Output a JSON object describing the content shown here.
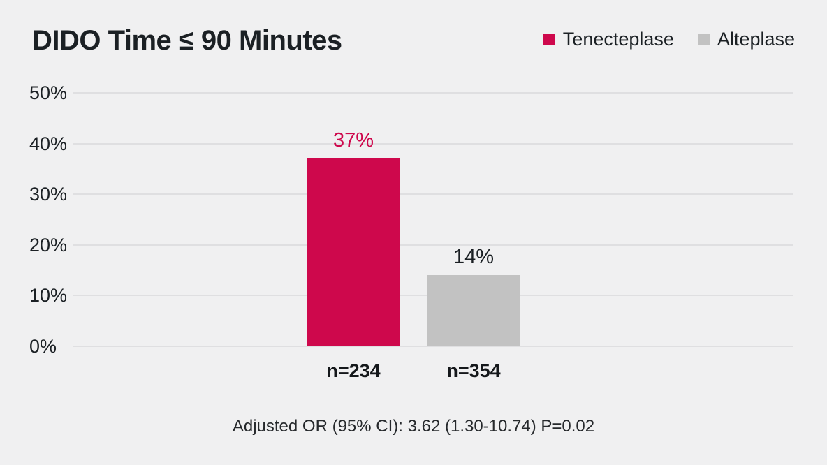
{
  "title": "DIDO Time ≤ 90 Minutes",
  "legend": {
    "items": [
      {
        "label": "Tenecteplase",
        "color": "#ce084c",
        "swatch": "tenecteplase-swatch-icon"
      },
      {
        "label": "Alteplase",
        "color": "#c2c2c2",
        "swatch": "alteplase-swatch-icon"
      }
    ]
  },
  "footnote": "Adjusted OR (95% CI): 3.62 (1.30-10.74) P=0.02",
  "chart_data": {
    "type": "bar",
    "title": "DIDO Time ≤ 90 Minutes",
    "categories": [
      "Tenecteplase",
      "Alteplase"
    ],
    "values": [
      37,
      14
    ],
    "bars": [
      {
        "category": "Tenecteplase",
        "value": 37,
        "value_label": "37%",
        "n_label": "n=234",
        "color": "#ce084c",
        "value_label_color": "#ce084c"
      },
      {
        "category": "Alteplase",
        "value": 14,
        "value_label": "14%",
        "n_label": "n=354",
        "color": "#c2c2c2",
        "value_label_color": "#1b2024"
      }
    ],
    "xlabel": "",
    "ylabel": "",
    "ylim": [
      0,
      50
    ],
    "yticks": [
      {
        "value": 0,
        "label": "0%"
      },
      {
        "value": 10,
        "label": "10%"
      },
      {
        "value": 20,
        "label": "20%"
      },
      {
        "value": 30,
        "label": "30%"
      },
      {
        "value": 40,
        "label": "40%"
      },
      {
        "value": 50,
        "label": "50%"
      }
    ],
    "grid": true,
    "legend_position": "top-right",
    "annotation": "Adjusted OR (95% CI): 3.62 (1.30-10.74) P=0.02"
  },
  "colors": {
    "background": "#f0f0f1",
    "gridline": "#dfdfe1",
    "text": "#1b2024",
    "accent": "#ce084c",
    "muted_bar": "#c2c2c2"
  }
}
